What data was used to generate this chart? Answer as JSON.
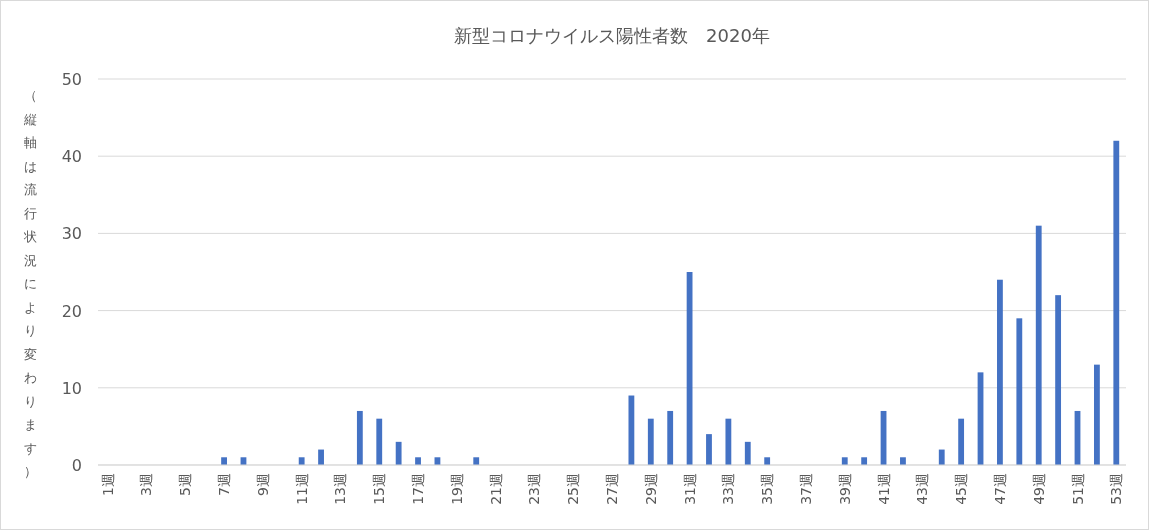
{
  "chart_data": {
    "type": "bar",
    "title": "新型コロナウイルス陽性者数　2020年",
    "ylabel": "（縦軸は流行状況により変わります）",
    "categories": [
      "1週",
      null,
      "3週",
      null,
      "5週",
      null,
      "7週",
      null,
      "9週",
      null,
      "11週",
      null,
      "13週",
      null,
      "15週",
      null,
      "17週",
      null,
      "19週",
      null,
      "21週",
      null,
      "23週",
      null,
      "25週",
      null,
      "27週",
      null,
      "29週",
      null,
      "31週",
      null,
      "33週",
      null,
      "35週",
      null,
      "37週",
      null,
      "39週",
      null,
      "41週",
      null,
      "43週",
      null,
      "45週",
      null,
      "47週",
      null,
      "49週",
      null,
      "51週",
      null,
      "53週"
    ],
    "values": [
      0,
      0,
      0,
      0,
      0,
      0,
      1,
      1,
      0,
      0,
      1,
      2,
      0,
      7,
      6,
      3,
      1,
      1,
      0,
      1,
      0,
      0,
      0,
      0,
      0,
      0,
      0,
      9,
      6,
      7,
      25,
      4,
      6,
      3,
      1,
      0,
      0,
      0,
      1,
      1,
      7,
      1,
      0,
      2,
      6,
      12,
      24,
      19,
      31,
      22,
      7,
      13,
      42
    ],
    "color": "#4472c4",
    "ylim": [
      0,
      50
    ],
    "yticks": [
      0,
      10,
      20,
      30,
      40,
      50
    ],
    "grid": "y"
  }
}
